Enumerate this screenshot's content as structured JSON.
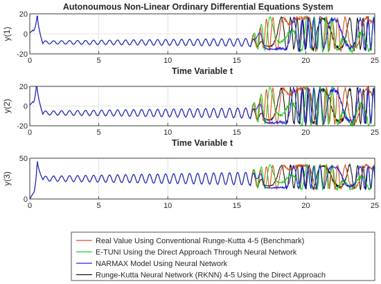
{
  "chart_data": {
    "type": "line",
    "title": "Autonoumous Non-Linear Ordinary Differential Equations System",
    "xlabel": "Time Variable t",
    "xlim": [
      0,
      25
    ],
    "xticks": [
      0,
      5,
      10,
      15,
      20,
      25
    ],
    "grid": true,
    "legend_position": "bottom",
    "series": [
      {
        "name": "Real Value Using Conventional Runge-Kutta 4-5 (Benchmark)",
        "color": "#d95319"
      },
      {
        "name": "E-TUNI Using the Direct Approach Through Neural Network",
        "color": "#22cc22"
      },
      {
        "name": "NARMAX Model Using Neural Network",
        "color": "#2222dd"
      },
      {
        "name": "Runge-Kutta Neural Network (RKNN) 4-5 Using the Direct Approach",
        "color": "#111111"
      }
    ],
    "panels": [
      {
        "ylabel": "y(1)",
        "ylim": [
          -20,
          20
        ],
        "yticks": [
          -20,
          0,
          20
        ],
        "peak": {
          "x": 0.55,
          "y": 20
        },
        "baseline": -8.5,
        "amplitude": 1.5,
        "description_points": [
          {
            "x": 0,
            "y": 1
          },
          {
            "x": 0.55,
            "y": 20
          },
          {
            "x": 1.0,
            "y": -8
          },
          {
            "x": 10,
            "y": -7
          },
          {
            "x": 16,
            "y": -4
          },
          {
            "x": 18,
            "y": 15
          },
          {
            "x": 25,
            "y": 12
          }
        ]
      },
      {
        "ylabel": "y(2)",
        "ylim": [
          -20,
          20
        ],
        "yticks": [
          -20,
          0,
          20
        ],
        "peak": {
          "x": 0.5,
          "y": 25
        },
        "baseline": -7,
        "amplitude": 2,
        "description_points": [
          {
            "x": 0,
            "y": 1
          },
          {
            "x": 0.5,
            "y": 25
          },
          {
            "x": 1.0,
            "y": -8
          },
          {
            "x": 10,
            "y": -6
          },
          {
            "x": 16,
            "y": -4
          },
          {
            "x": 18,
            "y": 15
          },
          {
            "x": 25,
            "y": 10
          }
        ]
      },
      {
        "ylabel": "y(3)",
        "ylim": [
          0,
          50
        ],
        "yticks": [
          0,
          50
        ],
        "peak": {
          "x": 0.55,
          "y": 48
        },
        "baseline": 25,
        "amplitude": 3,
        "description_points": [
          {
            "x": 0,
            "y": 0
          },
          {
            "x": 0.55,
            "y": 48
          },
          {
            "x": 1.0,
            "y": 23
          },
          {
            "x": 10,
            "y": 25
          },
          {
            "x": 16,
            "y": 27
          },
          {
            "x": 18,
            "y": 40
          },
          {
            "x": 25,
            "y": 35
          }
        ]
      }
    ]
  }
}
